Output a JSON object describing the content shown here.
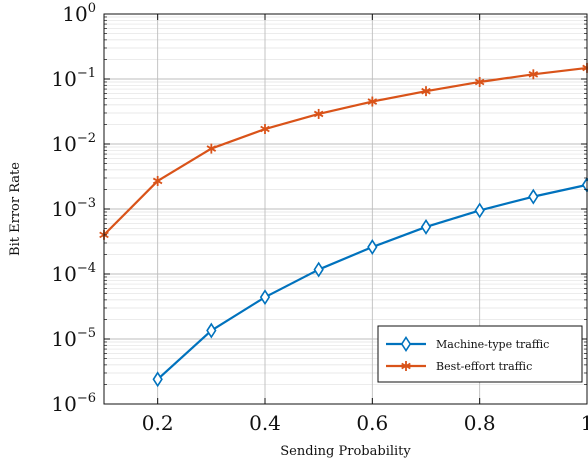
{
  "chart_data": {
    "type": "line",
    "xlabel": "Sending Probability",
    "ylabel": "Bit Error Rate",
    "xlim": [
      0.1,
      1.0
    ],
    "ylim": [
      1e-06,
      1
    ],
    "yscale": "log",
    "grid": true,
    "legend_position": "bottom-right",
    "x_ticks": [
      {
        "value": 0.2,
        "label": "0.2"
      },
      {
        "value": 0.4,
        "label": "0.4"
      },
      {
        "value": 0.6,
        "label": "0.6"
      },
      {
        "value": 0.8,
        "label": "0.8"
      },
      {
        "value": 1.0,
        "label": "1"
      }
    ],
    "y_ticks": [
      {
        "value": 1e-06,
        "base": "10",
        "exp": "−6"
      },
      {
        "value": 1e-05,
        "base": "10",
        "exp": "−5"
      },
      {
        "value": 0.0001,
        "base": "10",
        "exp": "−4"
      },
      {
        "value": 0.001,
        "base": "10",
        "exp": "−3"
      },
      {
        "value": 0.01,
        "base": "10",
        "exp": "−2"
      },
      {
        "value": 0.1,
        "base": "10",
        "exp": "−1"
      },
      {
        "value": 1,
        "base": "10",
        "exp": "0"
      }
    ],
    "series": [
      {
        "name": "Machine-type traffic",
        "color": "#0072bd",
        "marker": "diamond",
        "x": [
          0.2,
          0.3,
          0.4,
          0.5,
          0.6,
          0.7,
          0.8,
          0.9,
          1.0
        ],
        "y": [
          2.4e-06,
          1.35e-05,
          4.4e-05,
          0.000117,
          0.00026,
          0.00053,
          0.00095,
          0.00155,
          0.00235
        ]
      },
      {
        "name": "Best-effort traffic",
        "color": "#d95319",
        "marker": "asterisk",
        "x": [
          0.1,
          0.2,
          0.3,
          0.4,
          0.5,
          0.6,
          0.7,
          0.8,
          0.9,
          1.0
        ],
        "y": [
          0.0004,
          0.0027,
          0.0085,
          0.017,
          0.029,
          0.045,
          0.065,
          0.09,
          0.118,
          0.148
        ]
      }
    ]
  }
}
